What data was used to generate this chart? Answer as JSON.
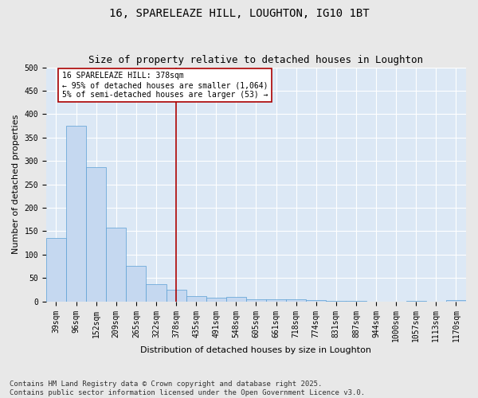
{
  "title": "16, SPARELEAZE HILL, LOUGHTON, IG10 1BT",
  "subtitle": "Size of property relative to detached houses in Loughton",
  "xlabel": "Distribution of detached houses by size in Loughton",
  "ylabel": "Number of detached properties",
  "categories": [
    "39sqm",
    "96sqm",
    "152sqm",
    "209sqm",
    "265sqm",
    "322sqm",
    "378sqm",
    "435sqm",
    "491sqm",
    "548sqm",
    "605sqm",
    "661sqm",
    "718sqm",
    "774sqm",
    "831sqm",
    "887sqm",
    "944sqm",
    "1000sqm",
    "1057sqm",
    "1113sqm",
    "1170sqm"
  ],
  "values": [
    135,
    375,
    286,
    158,
    75,
    37,
    24,
    11,
    7,
    9,
    4,
    5,
    5,
    2,
    1,
    1,
    0,
    0,
    1,
    0,
    3
  ],
  "bar_color": "#c5d8f0",
  "bar_edge_color": "#5a9fd4",
  "vline_x_index": 6,
  "vline_color": "#aa0000",
  "annotation_text": "16 SPARELEAZE HILL: 378sqm\n← 95% of detached houses are smaller (1,064)\n5% of semi-detached houses are larger (53) →",
  "annotation_box_color": "#ffffff",
  "annotation_box_edge": "#aa0000",
  "ylim": [
    0,
    500
  ],
  "yticks": [
    0,
    50,
    100,
    150,
    200,
    250,
    300,
    350,
    400,
    450,
    500
  ],
  "footer": "Contains HM Land Registry data © Crown copyright and database right 2025.\nContains public sector information licensed under the Open Government Licence v3.0.",
  "fig_bg_color": "#e8e8e8",
  "plot_bg_color": "#dce8f5",
  "title_fontsize": 10,
  "subtitle_fontsize": 9,
  "axis_label_fontsize": 8,
  "tick_fontsize": 7,
  "footer_fontsize": 6.5,
  "annotation_fontsize": 7
}
